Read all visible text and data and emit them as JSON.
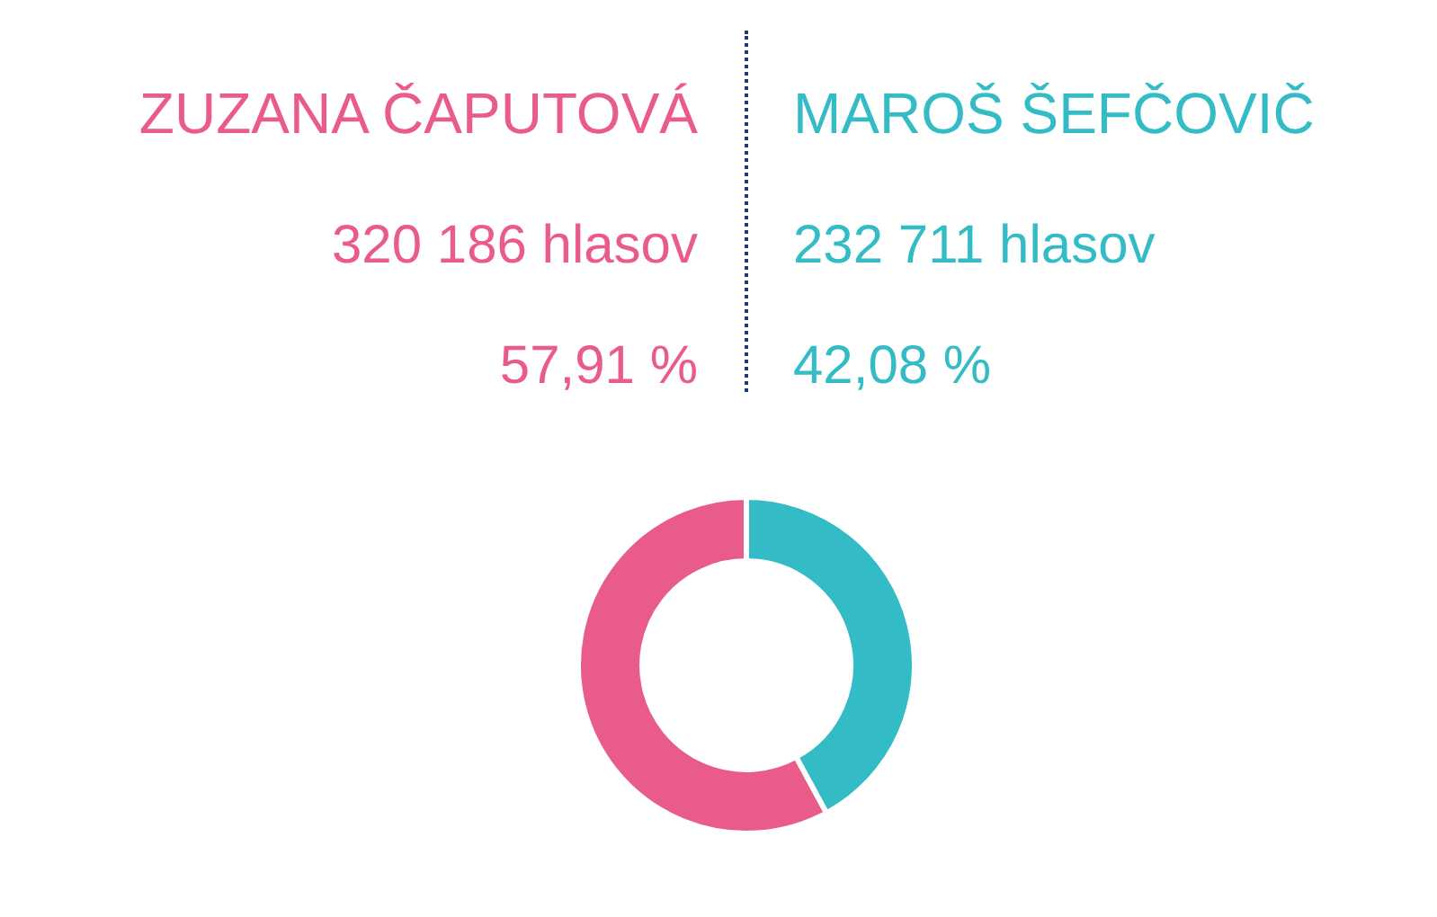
{
  "chart_data": [
    {
      "type": "other",
      "annotations": [
        "ZUZANA ČAPUTOVÁ",
        "MAROŠ ŠEFČOVIČ",
        "320 186 hlasov",
        "232 711 hlasov",
        "57,91 %",
        "42,08 %"
      ]
    },
    {
      "type": "donut",
      "categories": [
        null,
        null
      ],
      "values": [
        57.91,
        42.08
      ],
      "colors": [
        "#e95b88",
        "#33bcc6"
      ]
    }
  ]
}
